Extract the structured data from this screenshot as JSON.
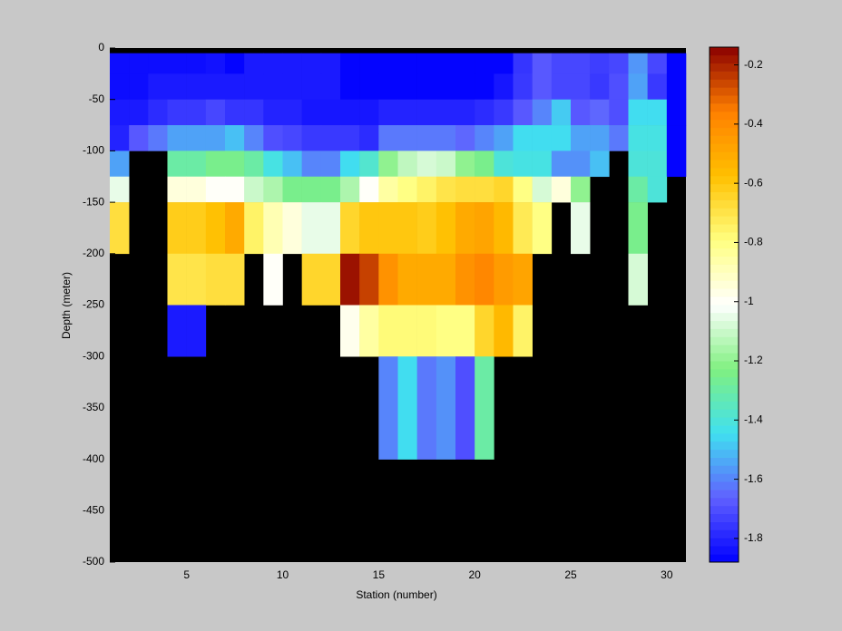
{
  "chart_data": {
    "type": "heatmap",
    "xlabel": "Station (number)",
    "ylabel": "Depth (meter)",
    "xlim": [
      1,
      31
    ],
    "xticks": [
      5,
      10,
      15,
      20,
      25,
      30
    ],
    "ylim": [
      -500,
      0
    ],
    "yticks": [
      -500,
      -450,
      -400,
      -350,
      -300,
      -250,
      -200,
      -150,
      -100,
      -50,
      0
    ],
    "x_edges": [
      1,
      2,
      3,
      4,
      5,
      6,
      7,
      8,
      9,
      10,
      11,
      12,
      13,
      14,
      15,
      16,
      17,
      18,
      19,
      20,
      21,
      22,
      23,
      24,
      25,
      26,
      27,
      28,
      29,
      30,
      31
    ],
    "y_edges": [
      -5,
      -25,
      -50,
      -75,
      -100,
      -125,
      -150,
      -200,
      -250,
      -300,
      -400
    ],
    "z": [
      [
        -1.85,
        -1.85,
        -1.85,
        -1.85,
        -1.85,
        -1.84,
        -1.87,
        -1.82,
        -1.82,
        -1.82,
        -1.82,
        -1.82,
        -1.87,
        -1.87,
        -1.87,
        -1.87,
        -1.87,
        -1.87,
        -1.87,
        -1.87,
        -1.87,
        -1.76,
        -1.68,
        -1.72,
        -1.72,
        -1.74,
        -1.72,
        -1.57,
        -1.72,
        -1.87
      ],
      [
        -1.85,
        -1.85,
        -1.82,
        -1.82,
        -1.82,
        -1.82,
        -1.82,
        -1.82,
        -1.82,
        -1.82,
        -1.82,
        -1.82,
        -1.87,
        -1.87,
        -1.87,
        -1.87,
        -1.87,
        -1.87,
        -1.87,
        -1.87,
        -1.83,
        -1.75,
        -1.68,
        -1.72,
        -1.72,
        -1.75,
        -1.7,
        -1.55,
        -1.75,
        -1.87
      ],
      [
        -1.82,
        -1.82,
        -1.78,
        -1.75,
        -1.75,
        -1.72,
        -1.76,
        -1.76,
        -1.8,
        -1.8,
        -1.83,
        -1.83,
        -1.83,
        -1.83,
        -1.8,
        -1.8,
        -1.8,
        -1.8,
        -1.8,
        -1.78,
        -1.75,
        -1.68,
        -1.6,
        -1.48,
        -1.68,
        -1.65,
        -1.7,
        -1.45,
        -1.45,
        -1.87
      ],
      [
        -1.8,
        -1.68,
        -1.62,
        -1.55,
        -1.55,
        -1.55,
        -1.5,
        -1.6,
        -1.7,
        -1.72,
        -1.75,
        -1.75,
        -1.75,
        -1.78,
        -1.62,
        -1.62,
        -1.62,
        -1.62,
        -1.65,
        -1.6,
        -1.55,
        -1.45,
        -1.45,
        -1.45,
        -1.55,
        -1.55,
        -1.62,
        -1.42,
        -1.42,
        -1.87
      ],
      [
        -1.55,
        null,
        null,
        -1.3,
        -1.3,
        -1.25,
        -1.25,
        -1.3,
        -1.42,
        -1.5,
        -1.6,
        -1.6,
        -1.45,
        -1.38,
        -1.2,
        -1.12,
        -1.08,
        -1.1,
        -1.2,
        -1.25,
        -1.4,
        -1.42,
        -1.42,
        -1.58,
        -1.58,
        -1.5,
        null,
        -1.4,
        -1.4,
        -1.87
      ],
      [
        -1.05,
        null,
        null,
        -0.95,
        -0.95,
        -1.0,
        -1.0,
        -1.1,
        -1.15,
        -1.25,
        -1.25,
        -1.25,
        -1.15,
        -1.0,
        -0.85,
        -0.8,
        -0.75,
        -0.7,
        -0.68,
        -0.68,
        -0.65,
        -0.8,
        -1.08,
        -0.95,
        -1.2,
        null,
        null,
        -1.3,
        -1.4,
        null
      ],
      [
        -0.68,
        null,
        null,
        -0.62,
        -0.62,
        -0.58,
        -0.5,
        -0.75,
        -0.88,
        -0.95,
        -1.05,
        -1.05,
        -0.65,
        -0.6,
        -0.6,
        -0.6,
        -0.62,
        -0.58,
        -0.5,
        -0.48,
        -0.55,
        -0.72,
        -0.8,
        null,
        -1.05,
        null,
        null,
        -1.25,
        null,
        null
      ],
      [
        null,
        null,
        null,
        -0.7,
        -0.7,
        -0.68,
        -0.68,
        null,
        -1.0,
        null,
        -0.65,
        -0.65,
        -0.17,
        -0.25,
        -0.42,
        -0.5,
        -0.5,
        -0.5,
        -0.42,
        -0.38,
        -0.45,
        -0.48,
        null,
        null,
        null,
        null,
        null,
        -1.08,
        null,
        null
      ],
      [
        null,
        null,
        null,
        -1.82,
        -1.82,
        null,
        null,
        null,
        null,
        null,
        null,
        null,
        -0.98,
        -0.85,
        -0.78,
        -0.78,
        -0.78,
        -0.8,
        -0.8,
        -0.65,
        -0.55,
        -0.75,
        null,
        null,
        null,
        null,
        null,
        null,
        null,
        null
      ],
      [
        null,
        null,
        null,
        null,
        null,
        null,
        null,
        null,
        null,
        null,
        null,
        null,
        null,
        null,
        -1.6,
        -1.45,
        -1.62,
        -1.58,
        -1.7,
        -1.3,
        null,
        null,
        null,
        null,
        null,
        null,
        null,
        null,
        null,
        null
      ]
    ],
    "nan_color": "#000000",
    "colormap": [
      "#0000ff",
      "#6060ff",
      "#40e0f0",
      "#80f080",
      "#ffffff",
      "#ffff80",
      "#ffc000",
      "#ff8000",
      "#8b0000"
    ],
    "clim": [
      -1.88,
      -0.14
    ],
    "colorbar_ticks": [
      -1.8,
      -1.6,
      -1.4,
      -1.2,
      -1,
      -0.8,
      -0.6,
      -0.4,
      -0.2
    ]
  }
}
